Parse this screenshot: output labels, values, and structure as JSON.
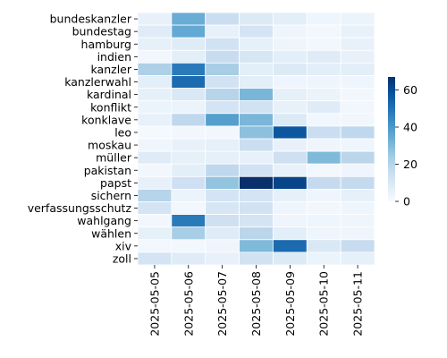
{
  "chart_data": {
    "type": "heatmap",
    "title": "",
    "xlabel": "",
    "ylabel": "",
    "colormap": "Blues",
    "cell_border_color": "#ffffff",
    "x_categories": [
      "2025-05-05",
      "2025-05-06",
      "2025-05-07",
      "2025-05-08",
      "2025-05-09",
      "2025-05-10",
      "2025-05-11"
    ],
    "y_categories": [
      "bundeskanzler",
      "bundestag",
      "hamburg",
      "indien",
      "kanzler",
      "kanzlerwahl",
      "kardinal",
      "konflikt",
      "konklave",
      "leo",
      "moskau",
      "müller",
      "pakistan",
      "papst",
      "sichern",
      "verfassungsschutz",
      "wahlgang",
      "wählen",
      "xiv",
      "zoll"
    ],
    "values": [
      [
        5,
        34,
        15,
        9,
        7,
        3,
        4
      ],
      [
        8,
        35,
        5,
        12,
        3,
        2,
        5
      ],
      [
        6,
        8,
        13,
        6,
        3,
        2,
        5
      ],
      [
        2,
        7,
        16,
        11,
        7,
        8,
        5
      ],
      [
        22,
        48,
        23,
        7,
        9,
        7,
        7
      ],
      [
        7,
        52,
        13,
        7,
        3,
        3,
        3
      ],
      [
        6,
        10,
        20,
        31,
        6,
        4,
        2
      ],
      [
        4,
        4,
        12,
        13,
        5,
        8,
        2
      ],
      [
        5,
        18,
        38,
        31,
        9,
        2,
        2
      ],
      [
        1,
        2,
        2,
        28,
        57,
        15,
        18
      ],
      [
        3,
        5,
        6,
        15,
        5,
        3,
        3
      ],
      [
        8,
        6,
        6,
        5,
        14,
        30,
        19
      ],
      [
        2,
        7,
        18,
        13,
        5,
        2,
        3
      ],
      [
        5,
        14,
        27,
        67,
        62,
        17,
        17
      ],
      [
        20,
        4,
        12,
        12,
        6,
        3,
        6
      ],
      [
        12,
        2,
        11,
        13,
        3,
        2,
        3
      ],
      [
        2,
        48,
        14,
        12,
        3,
        3,
        3
      ],
      [
        6,
        23,
        8,
        19,
        7,
        3,
        3
      ],
      [
        2,
        2,
        3,
        30,
        52,
        10,
        16
      ],
      [
        12,
        8,
        5,
        13,
        9,
        4,
        6
      ]
    ],
    "colorbar": {
      "vmin": 0,
      "vmax": 67,
      "ticks": [
        0,
        20,
        40,
        60
      ],
      "tick_labels": [
        "0",
        "20",
        "40",
        "60"
      ]
    }
  }
}
